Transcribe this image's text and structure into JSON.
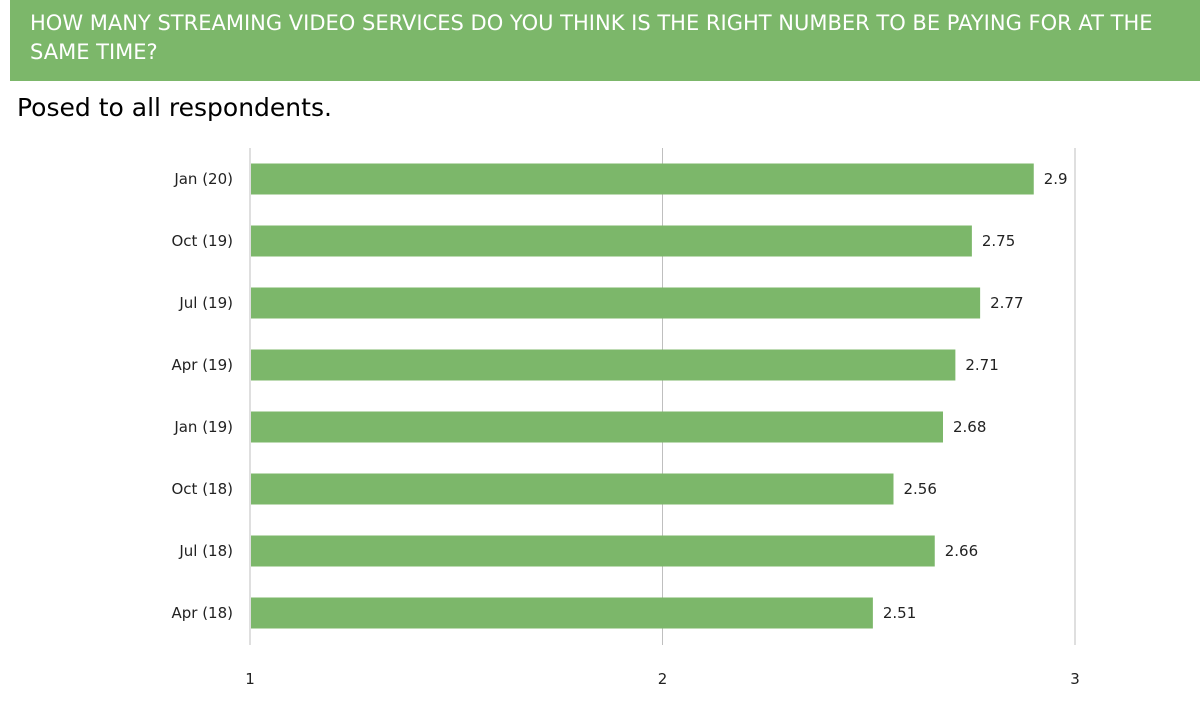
{
  "header": {
    "title": "HOW MANY STREAMING VIDEO SERVICES DO YOU THINK IS THE RIGHT NUMBER TO BE PAYING FOR AT THE SAME TIME?",
    "subtitle": "Posed to all respondents."
  },
  "colors": {
    "accent": "#7cb76a",
    "bar": "#7cb76a",
    "gridline": "#bfbfbf"
  },
  "chart_data": {
    "type": "bar",
    "orientation": "horizontal",
    "categories": [
      "Jan (20)",
      "Oct (19)",
      "Jul (19)",
      "Apr (19)",
      "Jan (19)",
      "Oct (18)",
      "Jul (18)",
      "Apr (18)"
    ],
    "values": [
      2.9,
      2.75,
      2.77,
      2.71,
      2.68,
      2.56,
      2.66,
      2.51
    ],
    "value_labels": [
      "2.9",
      "2.75",
      "2.77",
      "2.71",
      "2.68",
      "2.56",
      "2.66",
      "2.51"
    ],
    "xlim": [
      1,
      3
    ],
    "x_ticks": [
      1,
      2,
      3
    ],
    "x_tick_labels": [
      "1",
      "2",
      "3"
    ],
    "grid": true,
    "legend": "none"
  }
}
